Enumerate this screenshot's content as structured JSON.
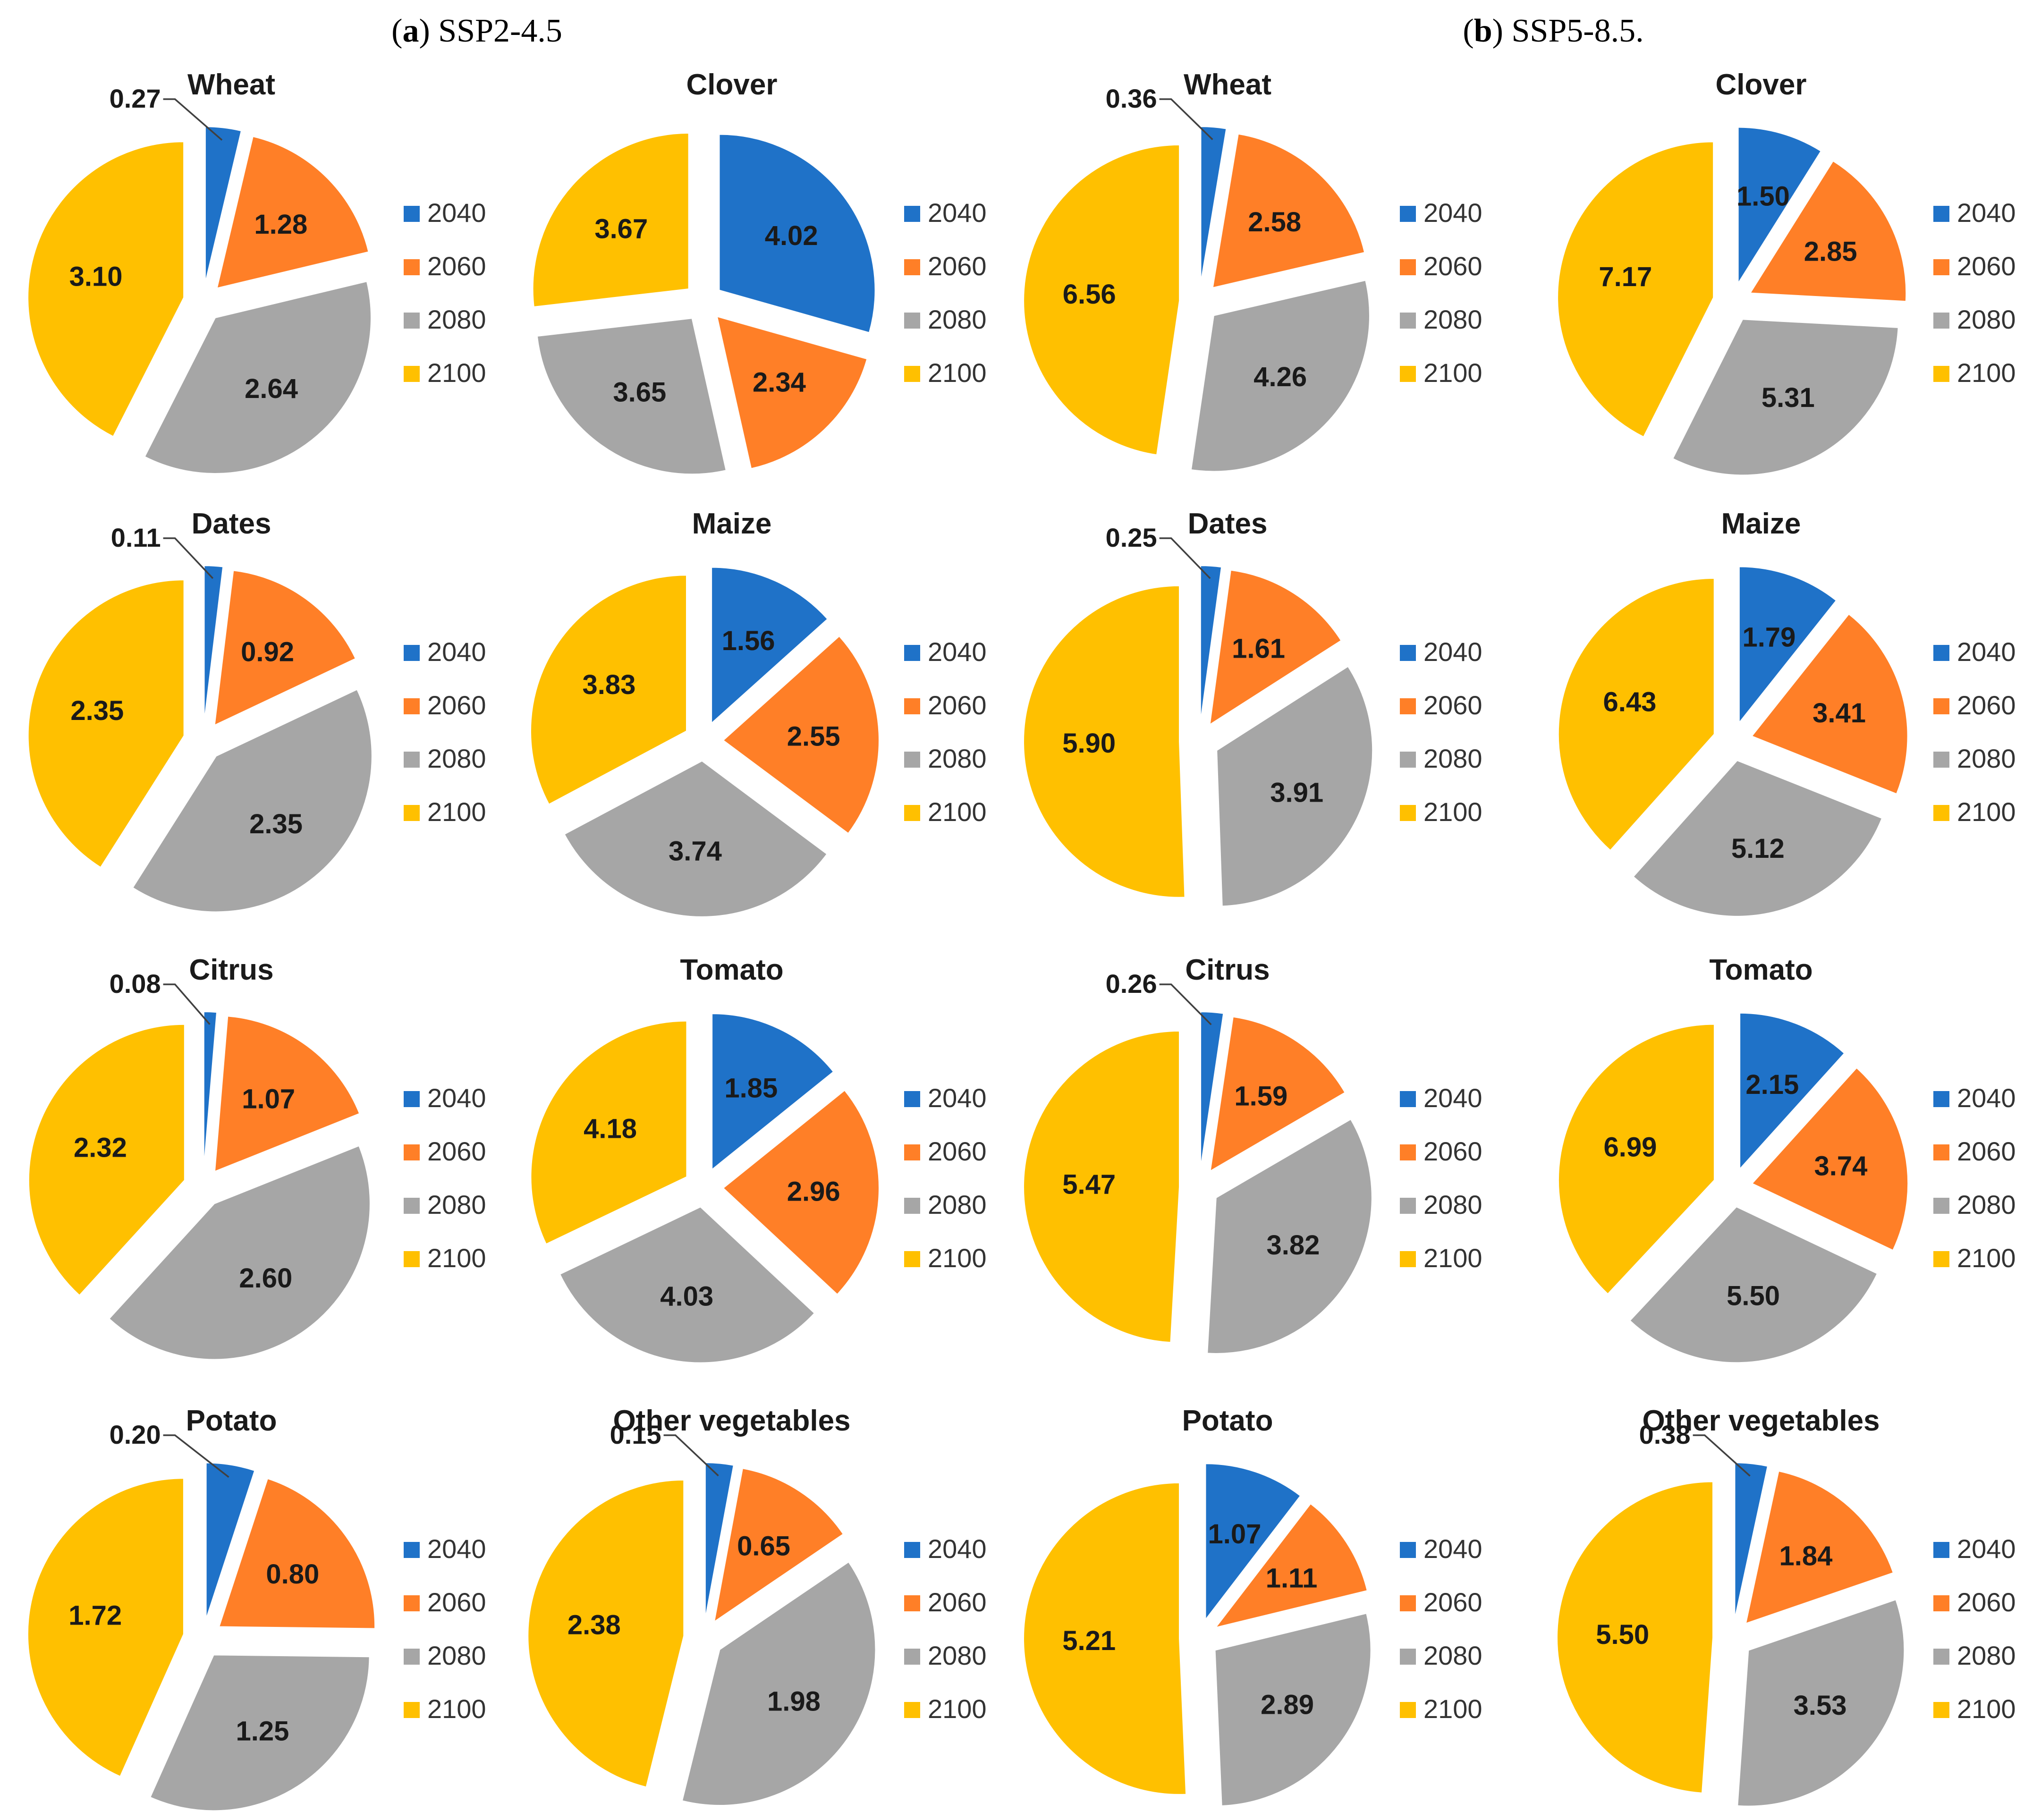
{
  "panels": [
    {
      "bold": "a",
      "text": "SSP2-4.5"
    },
    {
      "bold": "b",
      "text": "SSP5-8.5."
    }
  ],
  "colors": {
    "2040": "#1f72c8",
    "2060": "#ff7f27",
    "2080": "#a6a6a6",
    "2100": "#ffc000"
  },
  "legend_labels": [
    "2040",
    "2060",
    "2080",
    "2100"
  ],
  "chart_data": [
    {
      "type": "pie",
      "panel": "a",
      "title": "Wheat",
      "categories": [
        "2040",
        "2060",
        "2080",
        "2100"
      ],
      "values": [
        0.27,
        1.28,
        2.64,
        3.1
      ]
    },
    {
      "type": "pie",
      "panel": "a",
      "title": "Clover",
      "categories": [
        "2040",
        "2060",
        "2080",
        "2100"
      ],
      "values": [
        4.02,
        2.34,
        3.65,
        3.67
      ]
    },
    {
      "type": "pie",
      "panel": "b",
      "title": "Wheat",
      "categories": [
        "2040",
        "2060",
        "2080",
        "2100"
      ],
      "values": [
        0.36,
        2.58,
        4.26,
        6.56
      ]
    },
    {
      "type": "pie",
      "panel": "b",
      "title": "Clover",
      "categories": [
        "2040",
        "2060",
        "2080",
        "2100"
      ],
      "values": [
        1.5,
        2.85,
        5.31,
        7.17
      ]
    },
    {
      "type": "pie",
      "panel": "a",
      "title": "Dates",
      "categories": [
        "2040",
        "2060",
        "2080",
        "2100"
      ],
      "values": [
        0.11,
        0.92,
        2.35,
        2.35
      ]
    },
    {
      "type": "pie",
      "panel": "a",
      "title": "Maize",
      "categories": [
        "2040",
        "2060",
        "2080",
        "2100"
      ],
      "values": [
        1.56,
        2.55,
        3.74,
        3.83
      ]
    },
    {
      "type": "pie",
      "panel": "b",
      "title": "Dates",
      "categories": [
        "2040",
        "2060",
        "2080",
        "2100"
      ],
      "values": [
        0.25,
        1.61,
        3.91,
        5.9
      ]
    },
    {
      "type": "pie",
      "panel": "b",
      "title": "Maize",
      "categories": [
        "2040",
        "2060",
        "2080",
        "2100"
      ],
      "values": [
        1.79,
        3.41,
        5.12,
        6.43
      ]
    },
    {
      "type": "pie",
      "panel": "a",
      "title": "Citrus",
      "categories": [
        "2040",
        "2060",
        "2080",
        "2100"
      ],
      "values": [
        0.08,
        1.07,
        2.6,
        2.32
      ]
    },
    {
      "type": "pie",
      "panel": "a",
      "title": "Tomato",
      "categories": [
        "2040",
        "2060",
        "2080",
        "2100"
      ],
      "values": [
        1.85,
        2.96,
        4.03,
        4.18
      ]
    },
    {
      "type": "pie",
      "panel": "b",
      "title": "Citrus",
      "categories": [
        "2040",
        "2060",
        "2080",
        "2100"
      ],
      "values": [
        0.26,
        1.59,
        3.82,
        5.47
      ]
    },
    {
      "type": "pie",
      "panel": "b",
      "title": "Tomato",
      "categories": [
        "2040",
        "2060",
        "2080",
        "2100"
      ],
      "values": [
        2.15,
        3.74,
        5.5,
        6.99
      ]
    },
    {
      "type": "pie",
      "panel": "a",
      "title": "Potato",
      "categories": [
        "2040",
        "2060",
        "2080",
        "2100"
      ],
      "values": [
        0.2,
        0.8,
        1.25,
        1.72
      ]
    },
    {
      "type": "pie",
      "panel": "a",
      "title": "Other vegetables",
      "categories": [
        "2040",
        "2060",
        "2080",
        "2100"
      ],
      "values": [
        0.15,
        0.65,
        1.98,
        2.38
      ]
    },
    {
      "type": "pie",
      "panel": "b",
      "title": "Potato",
      "categories": [
        "2040",
        "2060",
        "2080",
        "2100"
      ],
      "values": [
        1.07,
        1.11,
        2.89,
        5.21
      ]
    },
    {
      "type": "pie",
      "panel": "b",
      "title": "Other vegetables",
      "categories": [
        "2040",
        "2060",
        "2080",
        "2100"
      ],
      "values": [
        0.38,
        1.84,
        3.53,
        5.5
      ]
    }
  ]
}
